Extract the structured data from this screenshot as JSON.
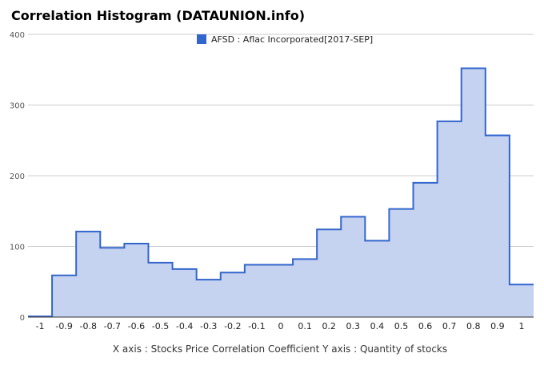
{
  "chart_data": {
    "type": "area",
    "title": "Correlation Histogram (DATAUNION.info)",
    "caption": "X axis : Stocks Price Correlation Coefficient  Y axis : Quantity of stocks",
    "xlabel": "",
    "ylabel": "",
    "xlim": [
      -1.05,
      1.05
    ],
    "ylim": [
      0,
      400
    ],
    "grid": true,
    "legend": "top",
    "x_ticks": [
      "-1",
      "-0.9",
      "-0.8",
      "-0.7",
      "-0.6",
      "-0.5",
      "-0.4",
      "-0.3",
      "-0.2",
      "-0.1",
      "0",
      "0.1",
      "0.2",
      "0.3",
      "0.4",
      "0.5",
      "0.6",
      "0.7",
      "0.8",
      "0.9",
      "1"
    ],
    "y_ticks": [
      "0",
      "100",
      "200",
      "300",
      "400"
    ],
    "series": [
      {
        "name": "AFSD : Aflac Incorporated[2017-SEP]",
        "color": "#3366cc",
        "fill": "#c5d2f0",
        "x": [
          -1,
          -0.9,
          -0.8,
          -0.7,
          -0.6,
          -0.5,
          -0.4,
          -0.3,
          -0.2,
          -0.1,
          0,
          0.1,
          0.2,
          0.3,
          0.4,
          0.5,
          0.6,
          0.7,
          0.8,
          0.9,
          1
        ],
        "values": [
          1,
          59,
          121,
          98,
          104,
          77,
          68,
          53,
          63,
          74,
          74,
          82,
          124,
          142,
          108,
          153,
          190,
          277,
          352,
          257,
          46
        ]
      }
    ]
  }
}
